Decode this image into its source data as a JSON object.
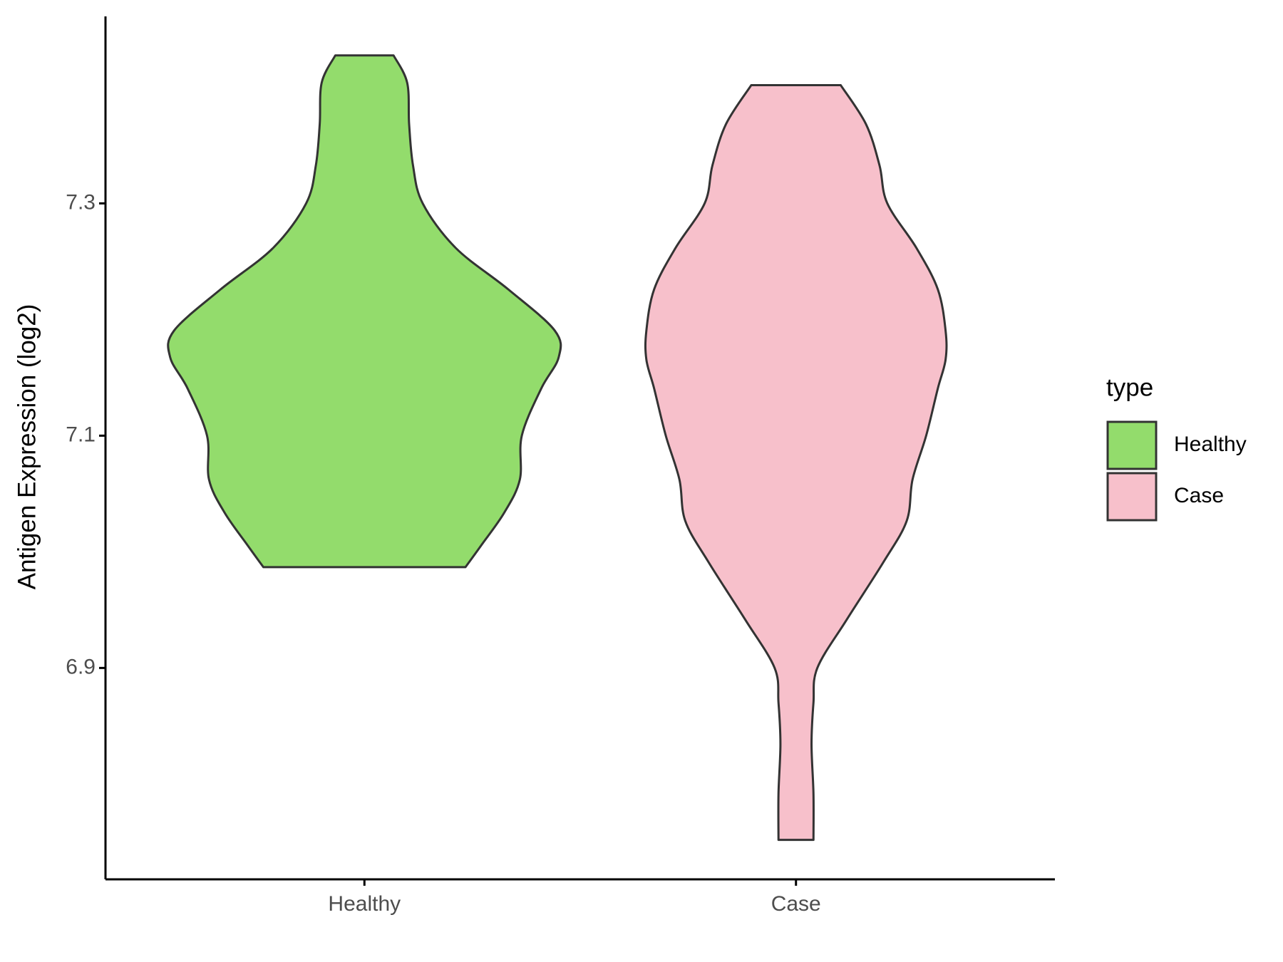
{
  "chart_data": {
    "type": "violin",
    "y_label": "Antigen Expression (log2)",
    "categories": [
      "Healthy",
      "Case"
    ],
    "legend_title": "type",
    "ylim": [
      6.718,
      7.461
    ],
    "yticks": [
      6.9,
      7.1,
      7.3
    ],
    "series": [
      {
        "name": "Healthy",
        "color": "#93dc6c",
        "y": [
          7.4274,
          7.4039,
          7.3683,
          7.3327,
          7.3,
          7.2616,
          7.226,
          7.1904,
          7.1676,
          7.1406,
          7.1,
          7.0623,
          7.0338,
          7.0053,
          6.9868
        ],
        "density": [
          0.15,
          0.22,
          0.23,
          0.25,
          0.3,
          0.47,
          0.74,
          0.98,
          1,
          0.91,
          0.81,
          0.8,
          0.72,
          0.6,
          0.52
        ]
      },
      {
        "name": "Case",
        "color": "#f7c0cb",
        "y": [
          7.4018,
          7.3683,
          7.3327,
          7.3,
          7.2616,
          7.226,
          7.1904,
          7.1655,
          7.1406,
          7.1,
          7.0623,
          7.0267,
          6.9911,
          6.9413,
          6.9,
          6.8701,
          6.8345,
          6.7918,
          6.752
        ],
        "density": [
          0.23,
          0.36,
          0.43,
          0.47,
          0.62,
          0.73,
          0.77,
          0.77,
          0.73,
          0.67,
          0.6,
          0.57,
          0.45,
          0.26,
          0.11,
          0.09,
          0.08,
          0.09,
          0.09
        ]
      }
    ]
  }
}
